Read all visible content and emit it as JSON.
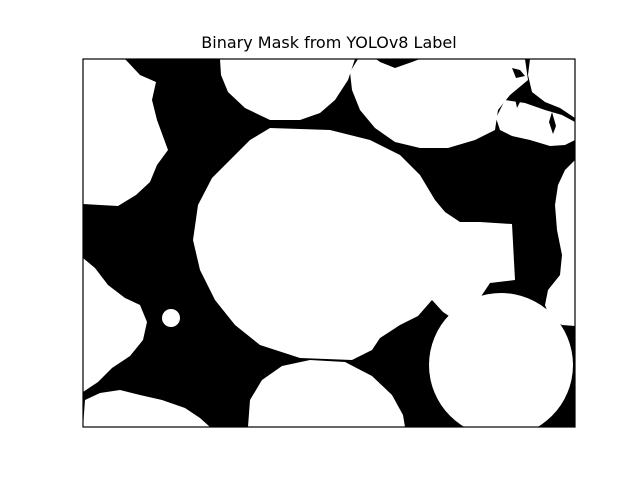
{
  "title": "Binary Mask from YOLOv8 Label",
  "colors": {
    "background": "#000000",
    "foreground": "#ffffff",
    "frame": "#000000"
  }
}
